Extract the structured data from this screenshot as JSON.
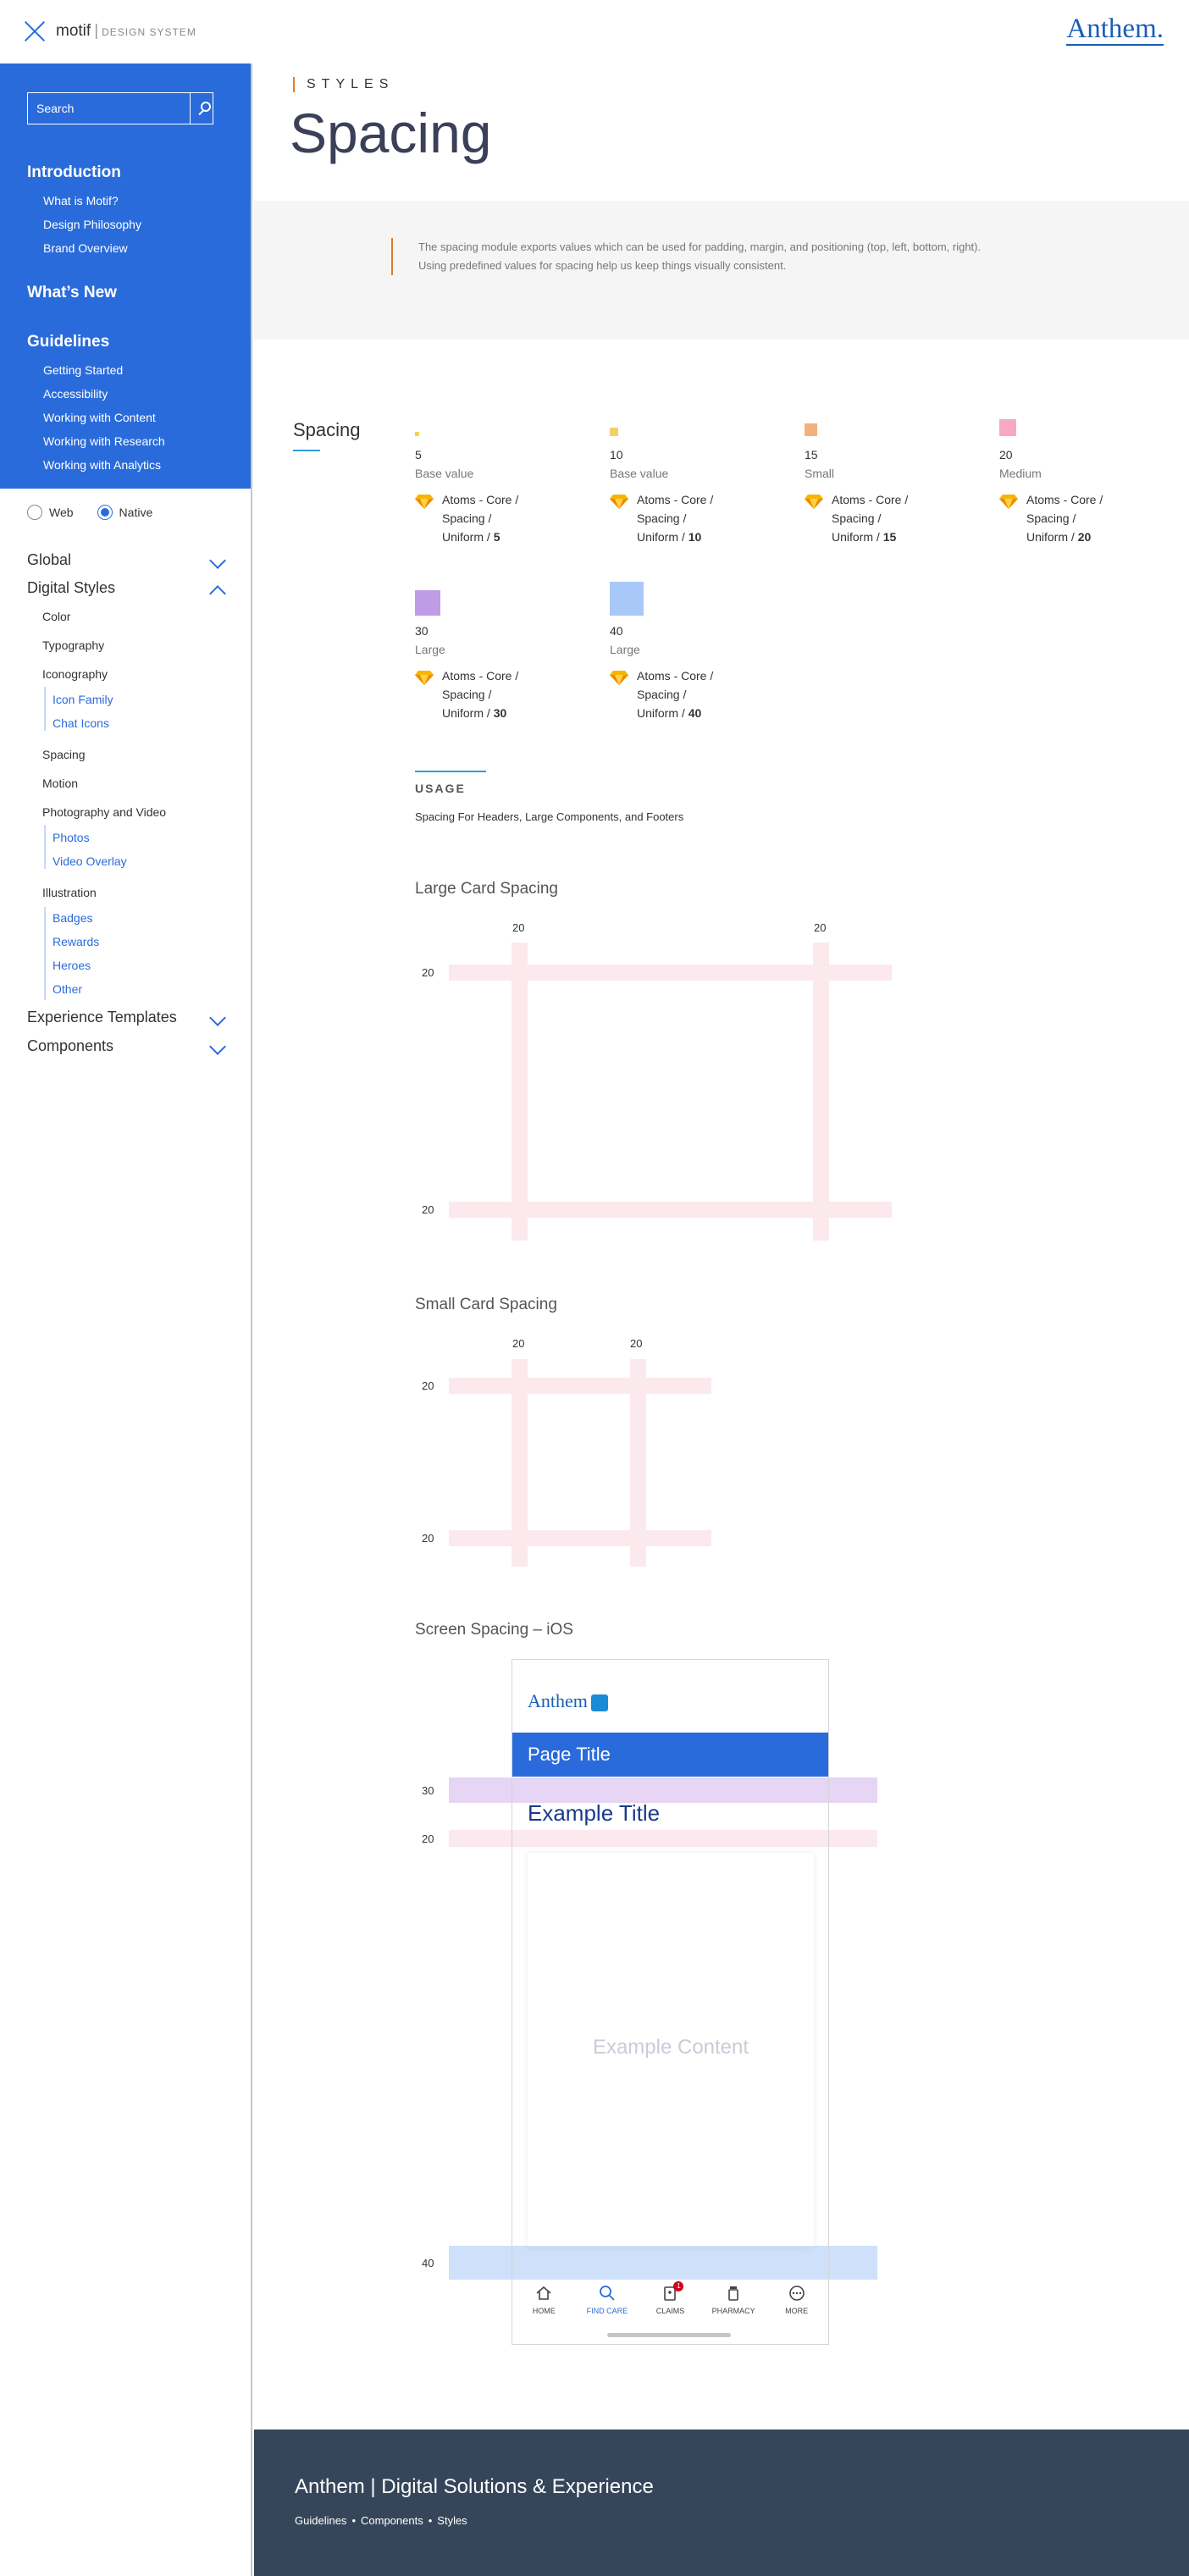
{
  "topbar": {
    "brand": "motif",
    "separator": "|",
    "brand_sub": "DESIGN SYSTEM",
    "logo": "Anthem."
  },
  "sidebar": {
    "search_placeholder": "Search",
    "groups": [
      {
        "title": "Introduction",
        "items": [
          "What is Motif?",
          "Design Philosophy",
          "Brand Overview"
        ]
      },
      {
        "title": "What’s New",
        "items": []
      },
      {
        "title": "Guidelines",
        "items": [
          "Getting Started",
          "Accessibility",
          "Working with Content",
          "Working with Research",
          "Working with Analytics"
        ]
      }
    ],
    "platform": {
      "web": "Web",
      "native": "Native",
      "selected": "Native"
    },
    "accordion": {
      "global": "Global",
      "digital_styles": "Digital Styles",
      "experience_templates": "Experience Templates",
      "components": "Components"
    },
    "digital_styles_items": {
      "color": "Color",
      "typography": "Typography",
      "iconography": "Iconography",
      "icon_family": "Icon Family",
      "chat_icons": "Chat Icons",
      "spacing": "Spacing",
      "motion": "Motion",
      "photo_video": "Photography and Video",
      "photos": "Photos",
      "video_overlay": "Video Overlay",
      "illustration": "Illustration",
      "badges": "Badges",
      "rewards": "Rewards",
      "heroes": "Heroes",
      "other": "Other"
    }
  },
  "main": {
    "eyebrow": "STYLES",
    "title": "Spacing",
    "intro_line1": "The spacing module exports values which can be used for padding, margin, and positioning (top, left, bottom, right).",
    "intro_line2": "Using predefined values for spacing help us keep things visually consistent.",
    "section_label": "Spacing",
    "tokens": [
      {
        "value": "5",
        "name": "Base value",
        "ref_a": "Atoms - Core /",
        "ref_b": "Spacing /",
        "ref_c": "Uniform /",
        "ref_num": "5",
        "color": "#f3d34a"
      },
      {
        "value": "10",
        "name": "Base value",
        "ref_a": "Atoms - Core /",
        "ref_b": "Spacing /",
        "ref_c": "Uniform /",
        "ref_num": "10",
        "color": "#f6cf6a"
      },
      {
        "value": "15",
        "name": "Small",
        "ref_a": "Atoms - Core /",
        "ref_b": "Spacing /",
        "ref_c": "Uniform /",
        "ref_num": "15",
        "color": "#f4b07c"
      },
      {
        "value": "20",
        "name": "Medium",
        "ref_a": "Atoms - Core /",
        "ref_b": "Spacing /",
        "ref_c": "Uniform /",
        "ref_num": "20",
        "color": "#f6a9c7"
      },
      {
        "value": "30",
        "name": "Large",
        "ref_a": "Atoms - Core /",
        "ref_b": "Spacing /",
        "ref_c": "Uniform /",
        "ref_num": "30",
        "color": "#c09be6"
      },
      {
        "value": "40",
        "name": "Large",
        "ref_a": "Atoms - Core /",
        "ref_b": "Spacing /",
        "ref_c": "Uniform /",
        "ref_num": "40",
        "color": "#a8c8fa"
      }
    ],
    "usage_heading": "USAGE",
    "usage_text": "Spacing For Headers, Large Components, and Footers",
    "large_card": {
      "title": "Large Card Spacing",
      "top_left": "20",
      "top_right": "20",
      "left_top": "20",
      "left_bottom": "20"
    },
    "small_card": {
      "title": "Small Card Spacing",
      "top_left": "20",
      "top_right": "20",
      "left_top": "20",
      "left_bottom": "20"
    },
    "screen": {
      "title": "Screen Spacing – iOS",
      "label_30": "30",
      "label_20": "20",
      "label_40": "40",
      "logo": "Anthem",
      "page_title": "Page Title",
      "example_title": "Example Title",
      "example_content": "Example Content",
      "tabs": [
        "HOME",
        "FIND CARE",
        "CLAIMS",
        "PHARMACY",
        "MORE"
      ],
      "active_tab": "FIND CARE",
      "claims_badge": "1"
    }
  },
  "footer": {
    "title": "Anthem | Digital Solutions & Experience",
    "crumbs": [
      "Guidelines",
      "Components",
      "Styles"
    ],
    "bullet": "•"
  }
}
